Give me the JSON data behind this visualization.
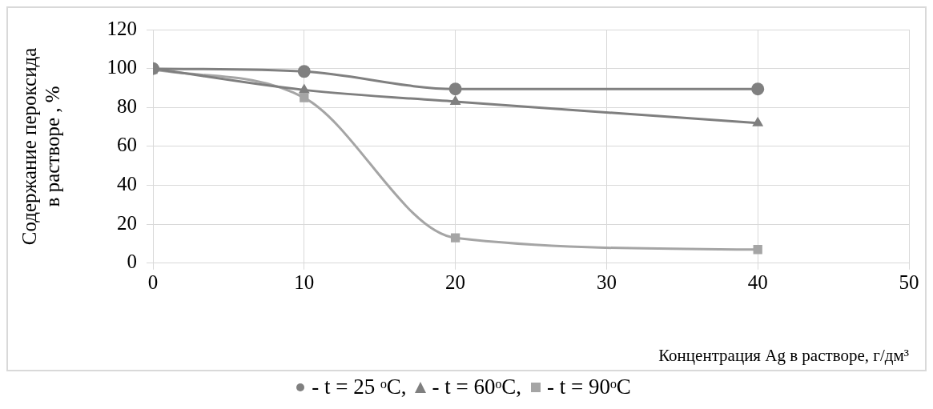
{
  "chart_data": {
    "type": "line",
    "xlabel": "Концентрация Ag в растворе, г/дм³",
    "ylabel": "Содержание пероксида\nв растворе , %",
    "x": [
      0,
      10,
      20,
      40
    ],
    "series": [
      {
        "name": "- t = 25 ᵒC,",
        "color": "#808080",
        "marker": "circle",
        "values": [
          100,
          98.5,
          89.5,
          89.5
        ]
      },
      {
        "name": "- t = 60ᵒC,",
        "color": "#7f7f7f",
        "marker": "triangle",
        "values": [
          100,
          89,
          83,
          72
        ]
      },
      {
        "name": "- t = 90ᵒC",
        "color": "#a5a5a5",
        "marker": "square",
        "values": [
          99.5,
          85,
          13,
          7
        ]
      }
    ],
    "xlim": [
      0,
      50
    ],
    "xticks": [
      0,
      10,
      20,
      30,
      40,
      50
    ],
    "ylim": [
      0,
      120
    ],
    "yticks": [
      0,
      20,
      40,
      60,
      80,
      100,
      120
    ],
    "grid": true,
    "legend": "bottom",
    "line_style": "solid"
  }
}
